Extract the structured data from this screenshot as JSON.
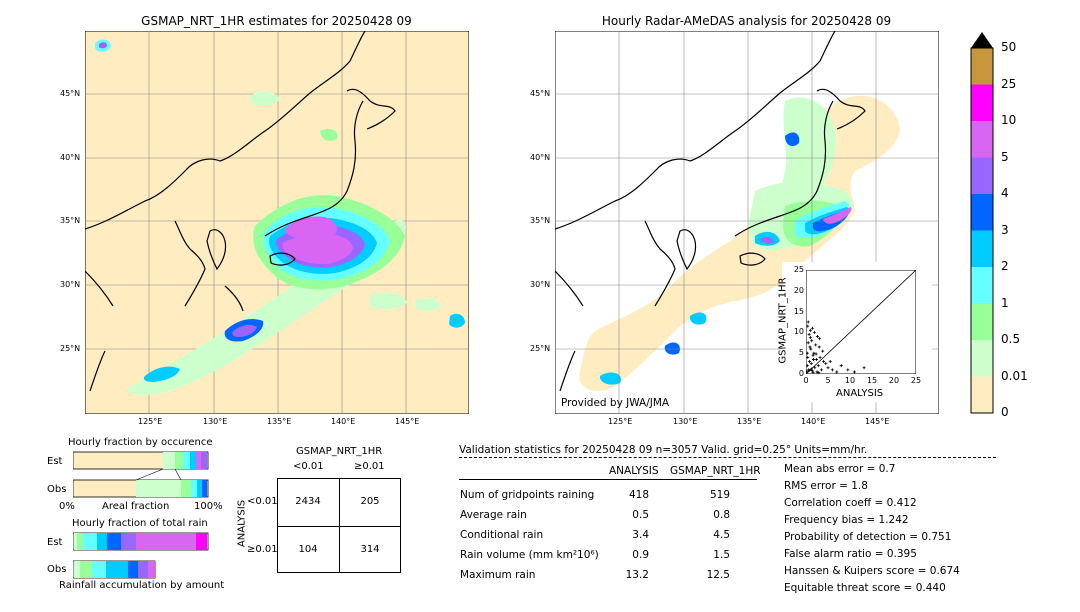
{
  "left_map": {
    "title": "GSMAP_NRT_1HR estimates for 20250428 09",
    "lat_labels": [
      "45°N",
      "40°N",
      "35°N",
      "30°N",
      "25°N"
    ],
    "lon_labels": [
      "125°E",
      "130°E",
      "135°E",
      "140°E",
      "145°E"
    ]
  },
  "right_map": {
    "title": "Hourly Radar-AMeDAS analysis for 20250428 09",
    "lat_labels": [
      "45°N",
      "40°N",
      "35°N",
      "30°N",
      "25°N"
    ],
    "lon_labels": [
      "125°E",
      "130°E",
      "135°E",
      "140°E",
      "145°E"
    ],
    "credit": "Provided by JWA/JMA"
  },
  "colorbar": {
    "labels": [
      "50",
      "25",
      "10",
      "5",
      "4",
      "3",
      "2",
      "1",
      "0.5",
      "0.01",
      "0"
    ],
    "colors": [
      "#c8963c",
      "#ff00ff",
      "#d966f2",
      "#9966ff",
      "#0066ff",
      "#00ccff",
      "#66ffff",
      "#99ff99",
      "#ccffcc",
      "#ffecc0"
    ]
  },
  "fraction_occurrence": {
    "title": "Hourly fraction by occurence",
    "est_label": "Est",
    "obs_label": "Obs",
    "xmin_label": "0%",
    "xmid_label": "Areal fraction",
    "xmax_label": "100%"
  },
  "fraction_total": {
    "title": "Hourly fraction of total rain",
    "est_label": "Est",
    "obs_label": "Obs",
    "footer": "Rainfall accumulation by amount"
  },
  "contingency": {
    "title": "GSMAP_NRT_1HR",
    "col_lt": "<0.01",
    "col_ge": "≥0.01",
    "row_axis": "ANALYSIS",
    "row_lt": "<0.01",
    "row_ge": "≥0.01",
    "a": "2434",
    "b": "205",
    "c": "104",
    "d": "314"
  },
  "validation": {
    "header": "Validation statistics for 20250428 09  n=3057 Valid. grid=0.25°  Units=mm/hr.",
    "col_analysis": "ANALYSIS",
    "col_gsmap": "GSMAP_NRT_1HR",
    "rows": [
      {
        "label": "Num of gridpoints raining",
        "analysis": "418",
        "gsmap": "519"
      },
      {
        "label": "Average rain",
        "analysis": "0.5",
        "gsmap": "0.8"
      },
      {
        "label": "Conditional rain",
        "analysis": "3.4",
        "gsmap": "4.5"
      },
      {
        "label": "Rain volume (mm km²10⁶)",
        "analysis": "0.9",
        "gsmap": "1.5"
      },
      {
        "label": "Maximum rain",
        "analysis": "13.2",
        "gsmap": "12.5"
      }
    ],
    "scores": [
      "Mean abs error =    0.7",
      "RMS error =    1.8",
      "Correlation coeff =  0.412",
      "Frequency bias =  1.242",
      "Probability of detection =  0.751",
      "False alarm ratio =  0.395",
      "Hanssen & Kuipers score =  0.674",
      "Equitable threat score =  0.440"
    ]
  },
  "chart_data": {
    "type": "scatter",
    "xlabel": "ANALYSIS",
    "ylabel": "GSMAP_NRT_1HR",
    "xlim": [
      0,
      25
    ],
    "ylim": [
      0,
      25
    ],
    "ticks": [
      "0",
      "5",
      "10",
      "15",
      "20",
      "25"
    ],
    "x": [
      0.2,
      0.3,
      0.4,
      0.5,
      0.6,
      0.7,
      0.8,
      1.0,
      1.1,
      1.2,
      1.3,
      1.5,
      1.6,
      1.8,
      2.0,
      2.2,
      2.4,
      2.6,
      2.8,
      3.0,
      3.2,
      3.5,
      3.8,
      4.0,
      4.5,
      5.0,
      5.5,
      6.0,
      7.0,
      8.0,
      9.5,
      11.0,
      13.2,
      0.5,
      0.9,
      1.4,
      1.9,
      2.5,
      3.1,
      0.3,
      0.7,
      1.2,
      1.7,
      2.3,
      2.9,
      0.4,
      1.0,
      1.6
    ],
    "y": [
      0.5,
      2.0,
      4.0,
      7.5,
      1.0,
      9.5,
      3.0,
      10.5,
      6.0,
      2.5,
      8.0,
      11.0,
      4.5,
      5.0,
      1.5,
      7.0,
      3.5,
      9.0,
      2.0,
      6.5,
      4.0,
      1.0,
      5.5,
      3.0,
      2.5,
      1.5,
      3.0,
      1.0,
      0.5,
      2.0,
      1.0,
      0.5,
      1.5,
      12.5,
      6.5,
      0.8,
      10.0,
      0.5,
      8.5,
      5.0,
      0.8,
      1.2,
      3.5,
      4.8,
      0.3,
      11.5,
      8.8,
      0.4
    ]
  }
}
